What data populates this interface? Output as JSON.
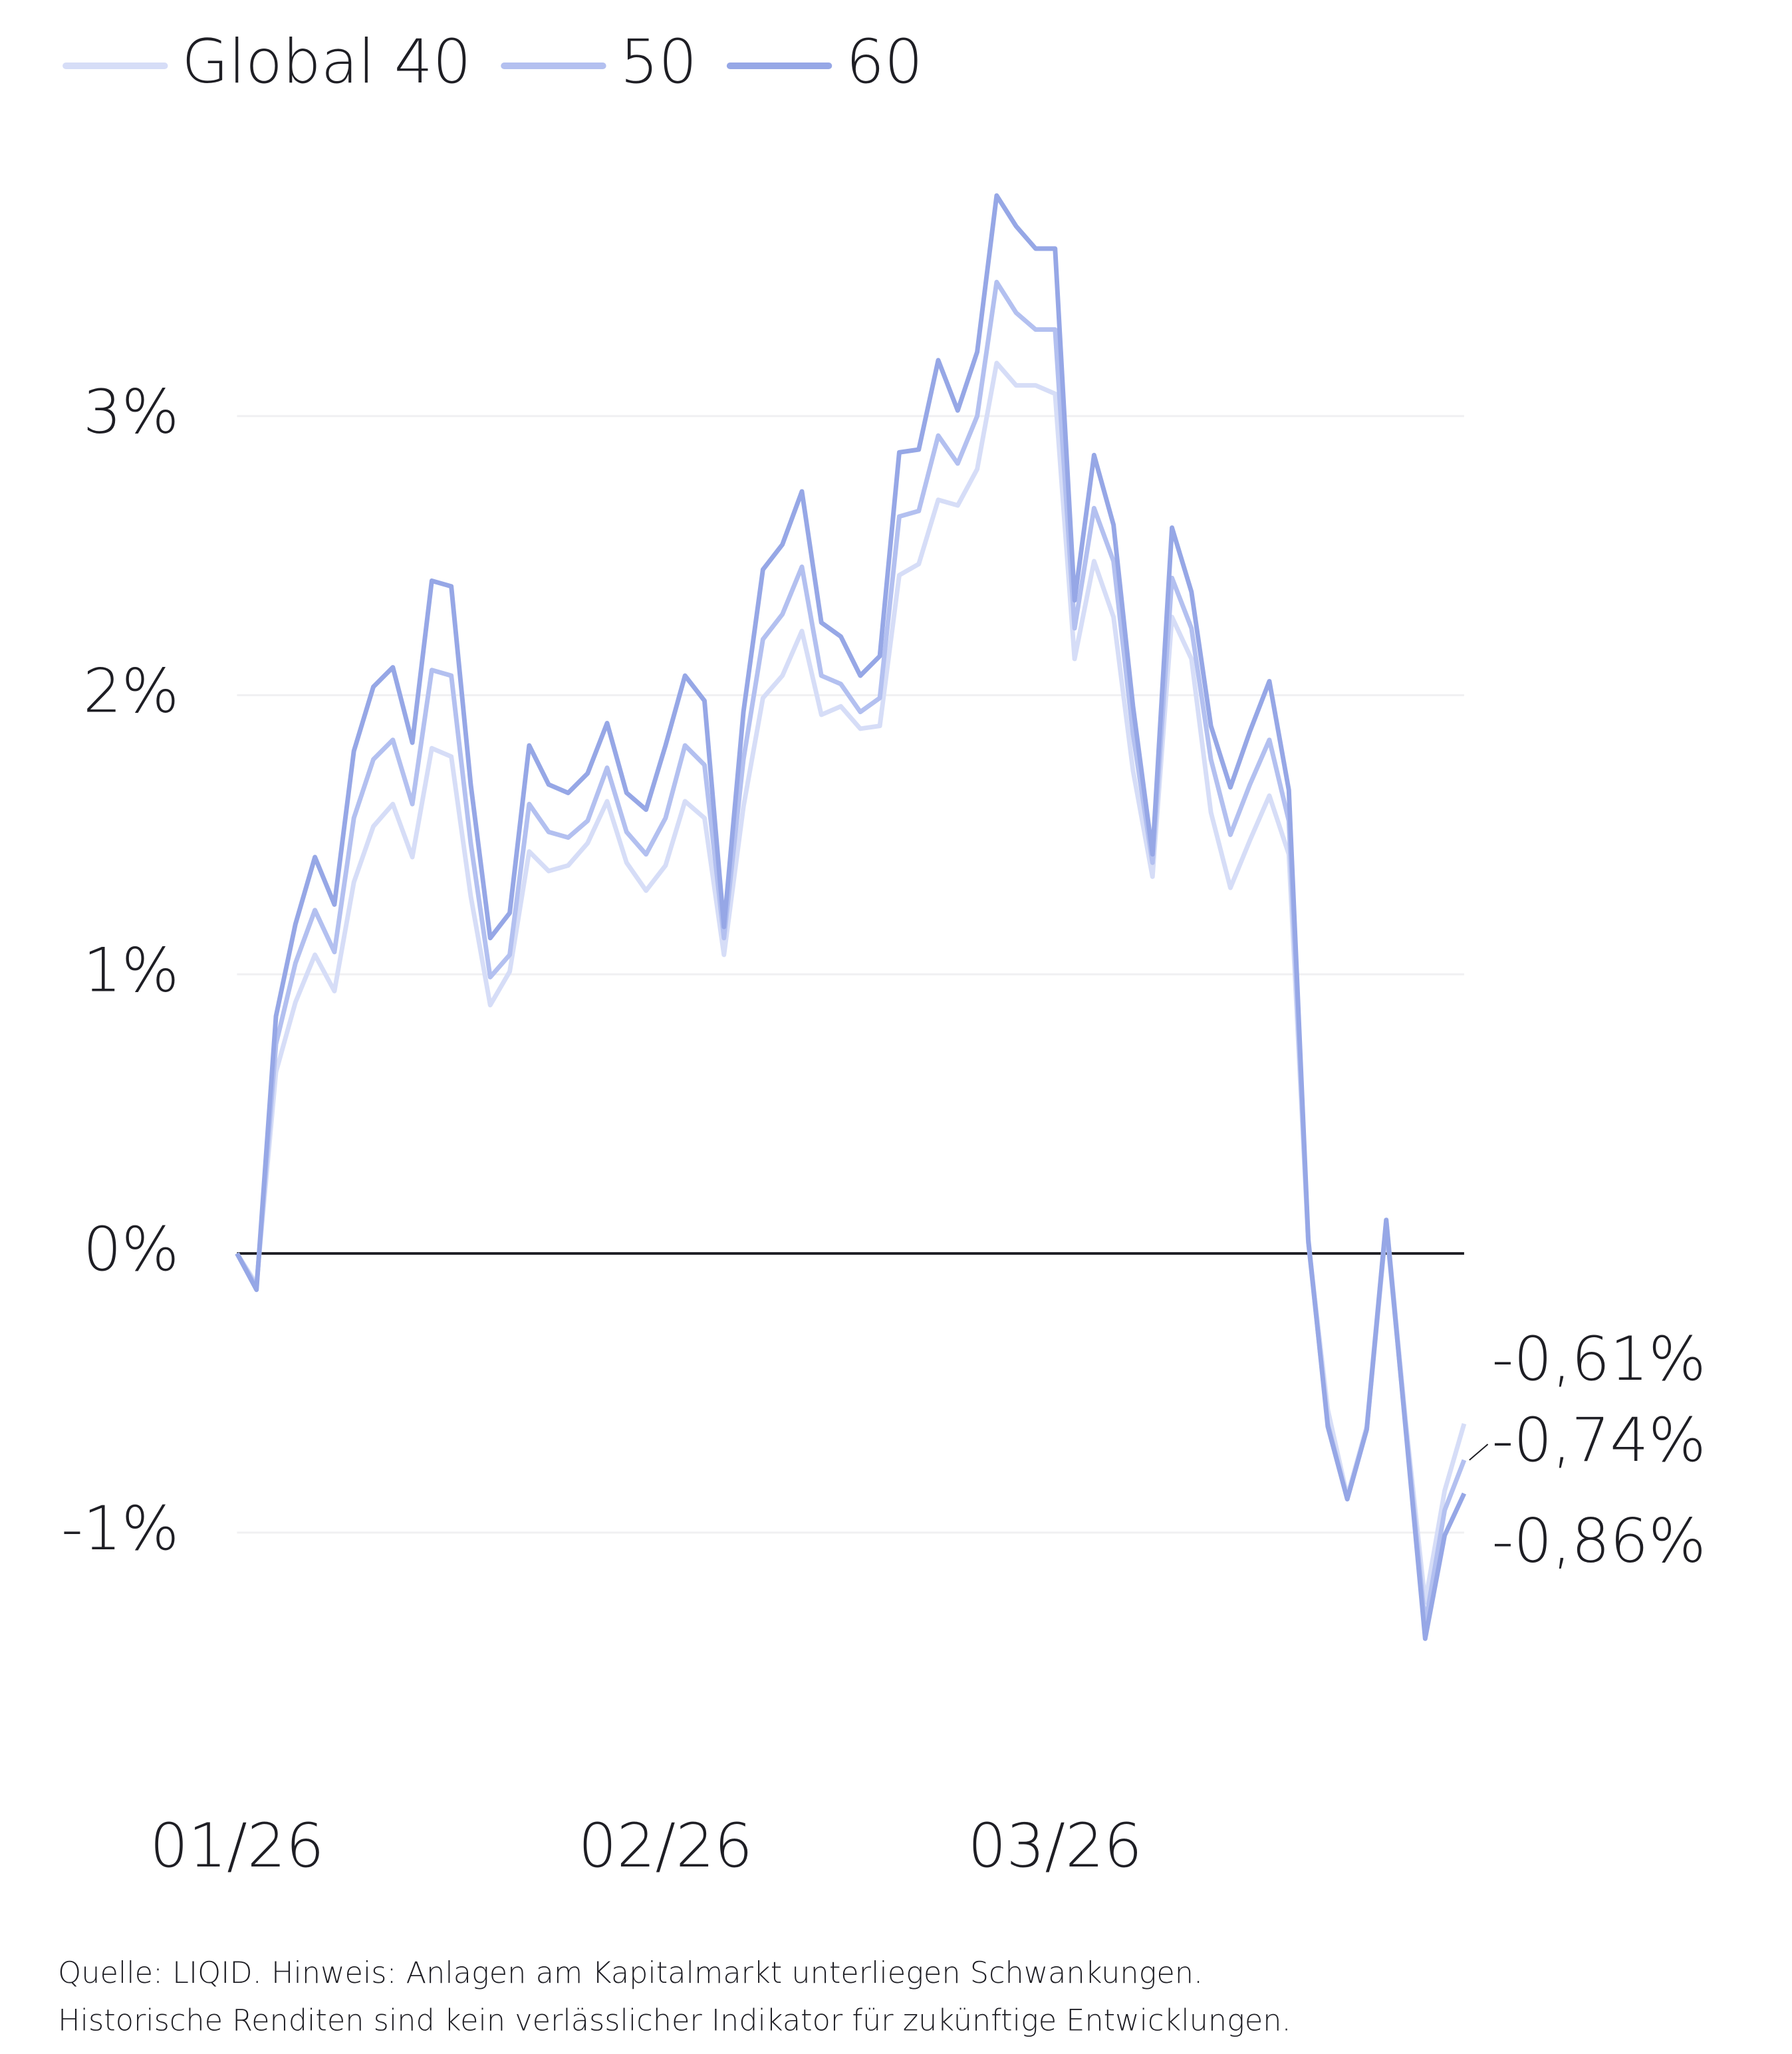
{
  "chart_data": {
    "type": "line",
    "categories": [
      "01/26",
      null,
      null,
      null,
      null,
      null,
      null,
      null,
      null,
      null,
      null,
      null,
      null,
      null,
      null,
      null,
      null,
      null,
      null,
      null,
      null,
      null,
      "02/26",
      null,
      null,
      null,
      null,
      null,
      null,
      null,
      null,
      null,
      null,
      null,
      null,
      null,
      null,
      null,
      null,
      null,
      null,
      null,
      "03/26",
      null,
      null,
      null,
      null,
      null,
      null,
      null,
      null,
      null,
      null,
      null,
      null,
      null,
      null,
      null,
      null,
      null,
      null,
      null,
      null,
      null
    ],
    "series": [
      {
        "name": "Global 40",
        "color": "#d6ddf7",
        "values": [
          0,
          -0.11,
          0.65,
          0.9,
          1.07,
          0.94,
          1.33,
          1.53,
          1.61,
          1.42,
          1.81,
          1.78,
          1.28,
          0.89,
          1.01,
          1.44,
          1.37,
          1.39,
          1.47,
          1.62,
          1.4,
          1.3,
          1.39,
          1.62,
          1.56,
          1.07,
          1.6,
          1.99,
          2.07,
          2.23,
          1.93,
          1.96,
          1.88,
          1.89,
          2.43,
          2.47,
          2.7,
          2.68,
          2.81,
          3.19,
          3.11,
          3.11,
          3.08,
          2.13,
          2.48,
          2.28,
          1.73,
          1.35,
          2.28,
          2.13,
          1.58,
          1.31,
          1.48,
          1.64,
          1.43,
          0.04,
          -0.56,
          -0.87,
          -0.62,
          0.12,
          -0.6,
          -1.25,
          -0.85,
          -0.61
        ],
        "value_labels": [
          null,
          null,
          null,
          null,
          null,
          null,
          null,
          null,
          null,
          null,
          null,
          null,
          null,
          null,
          null,
          null,
          null,
          null,
          null,
          null,
          null,
          null,
          null,
          null,
          null,
          null,
          null,
          null,
          null,
          null,
          null,
          null,
          null,
          null,
          null,
          null,
          null,
          null,
          null,
          null,
          null,
          null,
          null,
          null,
          null,
          null,
          null,
          null,
          null,
          null,
          null,
          null,
          null,
          null,
          null,
          null,
          null,
          null,
          null,
          null,
          null,
          null,
          null,
          "-0,61%"
        ]
      },
      {
        "name": "50",
        "color": "#b3c0f0",
        "values": [
          0,
          -0.12,
          0.75,
          1.04,
          1.23,
          1.08,
          1.56,
          1.77,
          1.84,
          1.61,
          2.09,
          2.07,
          1.47,
          0.99,
          1.07,
          1.61,
          1.51,
          1.49,
          1.55,
          1.74,
          1.51,
          1.43,
          1.56,
          1.82,
          1.75,
          1.13,
          1.77,
          2.2,
          2.29,
          2.46,
          2.07,
          2.04,
          1.94,
          1.99,
          2.64,
          2.66,
          2.93,
          2.83,
          3.0,
          3.48,
          3.37,
          3.31,
          3.31,
          2.24,
          2.67,
          2.48,
          1.86,
          1.4,
          2.42,
          2.24,
          1.77,
          1.5,
          1.68,
          1.84,
          1.55,
          0.04,
          -0.61,
          -0.88,
          -0.63,
          0.1,
          -0.62,
          -1.33,
          -0.92,
          -0.74
        ],
        "value_labels": [
          null,
          null,
          null,
          null,
          null,
          null,
          null,
          null,
          null,
          null,
          null,
          null,
          null,
          null,
          null,
          null,
          null,
          null,
          null,
          null,
          null,
          null,
          null,
          null,
          null,
          null,
          null,
          null,
          null,
          null,
          null,
          null,
          null,
          null,
          null,
          null,
          null,
          null,
          null,
          null,
          null,
          null,
          null,
          null,
          null,
          null,
          null,
          null,
          null,
          null,
          null,
          null,
          null,
          null,
          null,
          null,
          null,
          null,
          null,
          null,
          null,
          null,
          null,
          "-0,74%"
        ]
      },
      {
        "name": "60",
        "color": "#96a7e6",
        "values": [
          0,
          -0.13,
          0.85,
          1.18,
          1.42,
          1.25,
          1.8,
          2.03,
          2.1,
          1.83,
          2.41,
          2.39,
          1.68,
          1.13,
          1.22,
          1.82,
          1.68,
          1.65,
          1.72,
          1.9,
          1.65,
          1.59,
          1.82,
          2.07,
          1.98,
          1.17,
          1.94,
          2.45,
          2.54,
          2.73,
          2.26,
          2.21,
          2.07,
          2.14,
          2.87,
          2.88,
          3.2,
          3.02,
          3.23,
          3.79,
          3.68,
          3.6,
          3.6,
          2.34,
          2.86,
          2.61,
          1.96,
          1.43,
          2.6,
          2.37,
          1.89,
          1.67,
          1.87,
          2.05,
          1.66,
          0.05,
          -0.62,
          -0.88,
          -0.63,
          0.12,
          -0.63,
          -1.38,
          -1.01,
          -0.86
        ],
        "value_labels": [
          null,
          null,
          null,
          null,
          null,
          null,
          null,
          null,
          null,
          null,
          null,
          null,
          null,
          null,
          null,
          null,
          null,
          null,
          null,
          null,
          null,
          null,
          null,
          null,
          null,
          null,
          null,
          null,
          null,
          null,
          null,
          null,
          null,
          null,
          null,
          null,
          null,
          null,
          null,
          null,
          null,
          null,
          null,
          null,
          null,
          null,
          null,
          null,
          null,
          null,
          null,
          null,
          null,
          null,
          null,
          null,
          null,
          null,
          null,
          null,
          null,
          null,
          null,
          "-0,86%"
        ]
      }
    ],
    "ylim": [
      -1.5,
      4
    ],
    "yticks": [
      {
        "value": -1,
        "label": "-1%"
      },
      {
        "value": 0,
        "label": "0%"
      },
      {
        "value": 1,
        "label": "1%"
      },
      {
        "value": 2,
        "label": "2%"
      },
      {
        "value": 3,
        "label": "3%"
      }
    ],
    "grid": true,
    "legend": "top-left",
    "notes": [
      "Quelle: LIQID. Hinweis: Anlagen am Kapitalmarkt unterliegen Schwankungen.",
      "Historische Renditen sind kein verlässlicher Indikator für zukünftige Entwicklungen."
    ]
  }
}
